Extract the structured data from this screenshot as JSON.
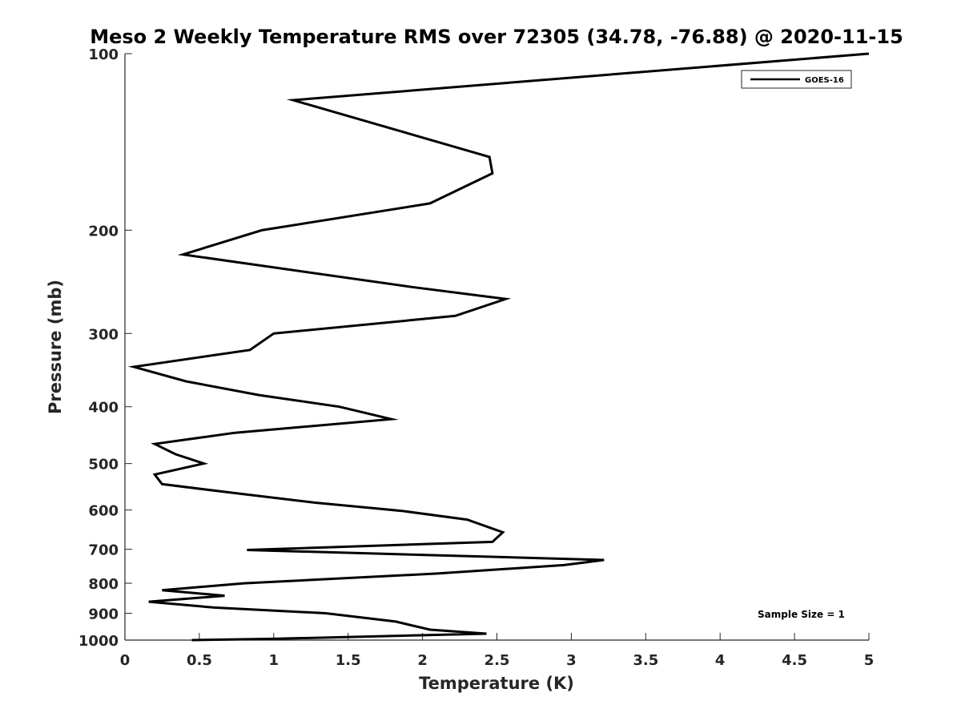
{
  "chart_data": {
    "type": "line",
    "title": "Meso 2 Weekly Temperature RMS over 72305 (34.78, -76.88) @ 2020-11-15",
    "xlabel": "Temperature (K)",
    "ylabel": "Pressure (mb)",
    "xlim": [
      0,
      5
    ],
    "ylim": [
      1000,
      100
    ],
    "y_scale": "log",
    "y_reversed": true,
    "grid": false,
    "xticks": [
      0,
      0.5,
      1,
      1.5,
      2,
      2.5,
      3,
      3.5,
      4,
      4.5,
      5
    ],
    "xtick_labels": [
      "0",
      "0.5",
      "1",
      "1.5",
      "2",
      "2.5",
      "3",
      "3.5",
      "4",
      "4.5",
      "5"
    ],
    "yticks": [
      100,
      200,
      300,
      400,
      500,
      600,
      700,
      800,
      900,
      1000
    ],
    "ytick_labels": [
      "100",
      "200",
      "300",
      "400",
      "500",
      "600",
      "700",
      "800",
      "900",
      "1000"
    ],
    "legend_position": "top-right",
    "annotation": "Sample Size = 1",
    "series": [
      {
        "name": "GOES-16",
        "color": "#000000",
        "points": [
          [
            5.0,
            100
          ],
          [
            1.13,
            120
          ],
          [
            2.45,
            150
          ],
          [
            2.47,
            160
          ],
          [
            2.05,
            180
          ],
          [
            0.92,
            200
          ],
          [
            0.39,
            220
          ],
          [
            1.93,
            250
          ],
          [
            2.56,
            262
          ],
          [
            2.22,
            280
          ],
          [
            1.0,
            300
          ],
          [
            0.84,
            320
          ],
          [
            0.06,
            342
          ],
          [
            0.41,
            362
          ],
          [
            0.9,
            382
          ],
          [
            1.44,
            400
          ],
          [
            1.79,
            420
          ],
          [
            0.74,
            443
          ],
          [
            0.2,
            463
          ],
          [
            0.34,
            482
          ],
          [
            0.53,
            500
          ],
          [
            0.2,
            522
          ],
          [
            0.25,
            542
          ],
          [
            0.75,
            562
          ],
          [
            1.28,
            583
          ],
          [
            1.86,
            602
          ],
          [
            2.3,
            623
          ],
          [
            2.54,
            655
          ],
          [
            2.47,
            680
          ],
          [
            0.82,
            702
          ],
          [
            3.22,
            730
          ],
          [
            2.95,
            745
          ],
          [
            2.1,
            770
          ],
          [
            0.8,
            800
          ],
          [
            0.25,
            822
          ],
          [
            0.67,
            840
          ],
          [
            0.16,
            860
          ],
          [
            0.6,
            880
          ],
          [
            1.35,
            900
          ],
          [
            1.82,
            930
          ],
          [
            2.05,
            960
          ],
          [
            2.43,
            975
          ],
          [
            1.0,
            995
          ],
          [
            0.45,
            1000
          ]
        ]
      }
    ]
  }
}
